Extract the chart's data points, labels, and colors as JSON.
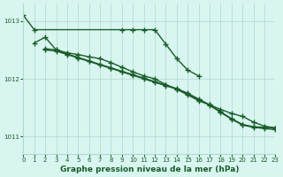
{
  "title": "Graphe pression niveau de la mer (hPa)",
  "bg_color": "#d8f5f0",
  "grid_color": "#b0d8d0",
  "line_color": "#1a5c2a",
  "xlim": [
    0,
    23
  ],
  "ylim": [
    1010.7,
    1013.3
  ],
  "yticks": [
    1011,
    1012,
    1013
  ],
  "xticks": [
    0,
    1,
    2,
    3,
    4,
    5,
    6,
    7,
    8,
    9,
    10,
    11,
    12,
    13,
    14,
    15,
    16,
    17,
    18,
    19,
    20,
    21,
    22,
    23
  ],
  "curve1_x": [
    0,
    1,
    9,
    10,
    11,
    12,
    13,
    14,
    15,
    16
  ],
  "curve1_y": [
    1013.1,
    1012.85,
    1012.85,
    1012.85,
    1012.85,
    1012.85,
    1012.6,
    1012.35,
    1012.15,
    1012.05
  ],
  "curve2_x": [
    1,
    2,
    3,
    4,
    5,
    6,
    7,
    8,
    9,
    10,
    11,
    12,
    13,
    14,
    15,
    16,
    17,
    18,
    19,
    20,
    21,
    22,
    23
  ],
  "curve2_y": [
    1012.62,
    1012.72,
    1012.5,
    1012.45,
    1012.42,
    1012.38,
    1012.35,
    1012.28,
    1012.2,
    1012.12,
    1012.05,
    1012.0,
    1011.9,
    1011.82,
    1011.72,
    1011.62,
    1011.55,
    1011.47,
    1011.4,
    1011.35,
    1011.25,
    1011.18,
    1011.15
  ],
  "curve3_x": [
    2,
    3,
    4,
    5,
    6,
    7,
    8,
    9,
    10,
    11,
    12,
    13,
    14,
    15,
    16,
    17,
    18,
    19,
    20,
    21,
    22,
    23
  ],
  "curve3_y": [
    1012.52,
    1012.5,
    1012.43,
    1012.37,
    1012.31,
    1012.25,
    1012.19,
    1012.13,
    1012.07,
    1012.01,
    1011.95,
    1011.89,
    1011.83,
    1011.75,
    1011.65,
    1011.55,
    1011.43,
    1011.31,
    1011.21,
    1011.17,
    1011.16,
    1011.15
  ],
  "curve4_x": [
    2,
    3,
    4,
    5,
    6,
    7,
    8,
    9,
    10,
    11,
    12,
    13,
    14,
    15,
    16,
    17,
    18,
    19,
    20,
    21,
    22,
    23
  ],
  "curve4_y": [
    1012.5,
    1012.48,
    1012.42,
    1012.36,
    1012.3,
    1012.24,
    1012.18,
    1012.12,
    1012.06,
    1012.0,
    1011.94,
    1011.88,
    1011.82,
    1011.74,
    1011.64,
    1011.54,
    1011.42,
    1011.3,
    1011.2,
    1011.16,
    1011.14,
    1011.12
  ]
}
